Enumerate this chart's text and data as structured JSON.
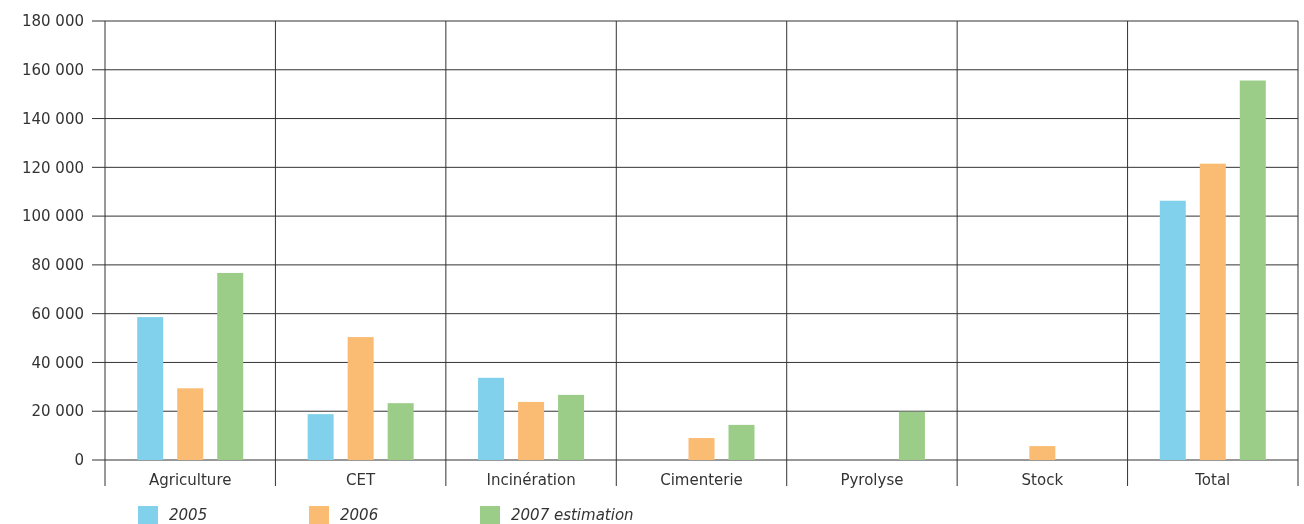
{
  "chart_data": {
    "type": "bar",
    "categories": [
      "Agriculture",
      "CET",
      "Incinération",
      "Cimenterie",
      "Pyrolyse",
      "Stock",
      "Total"
    ],
    "series": [
      {
        "name": "2005",
        "color": "#81d1ec",
        "values": [
          58600,
          18800,
          33700,
          null,
          null,
          null,
          106300
        ]
      },
      {
        "name": "2006",
        "color": "#fabb73",
        "values": [
          29400,
          50400,
          23800,
          9000,
          null,
          5700,
          121500
        ]
      },
      {
        "name": "2007 estimation",
        "color": "#9bcd89",
        "values": [
          76700,
          23300,
          26700,
          14400,
          19800,
          null,
          155600
        ]
      }
    ],
    "ylim": [
      0,
      180000
    ],
    "yticks": [
      {
        "value": 0,
        "label": "0"
      },
      {
        "value": 20000,
        "label": "20 000"
      },
      {
        "value": 40000,
        "label": "40 000"
      },
      {
        "value": 60000,
        "label": "60 000"
      },
      {
        "value": 80000,
        "label": "80 000"
      },
      {
        "value": 100000,
        "label": "100 000"
      },
      {
        "value": 120000,
        "label": "120 000"
      },
      {
        "value": 140000,
        "label": "140 000"
      },
      {
        "value": 160000,
        "label": "160 000"
      },
      {
        "value": 180000,
        "label": "180 000"
      }
    ],
    "grid": true,
    "legend": "bottom left"
  }
}
